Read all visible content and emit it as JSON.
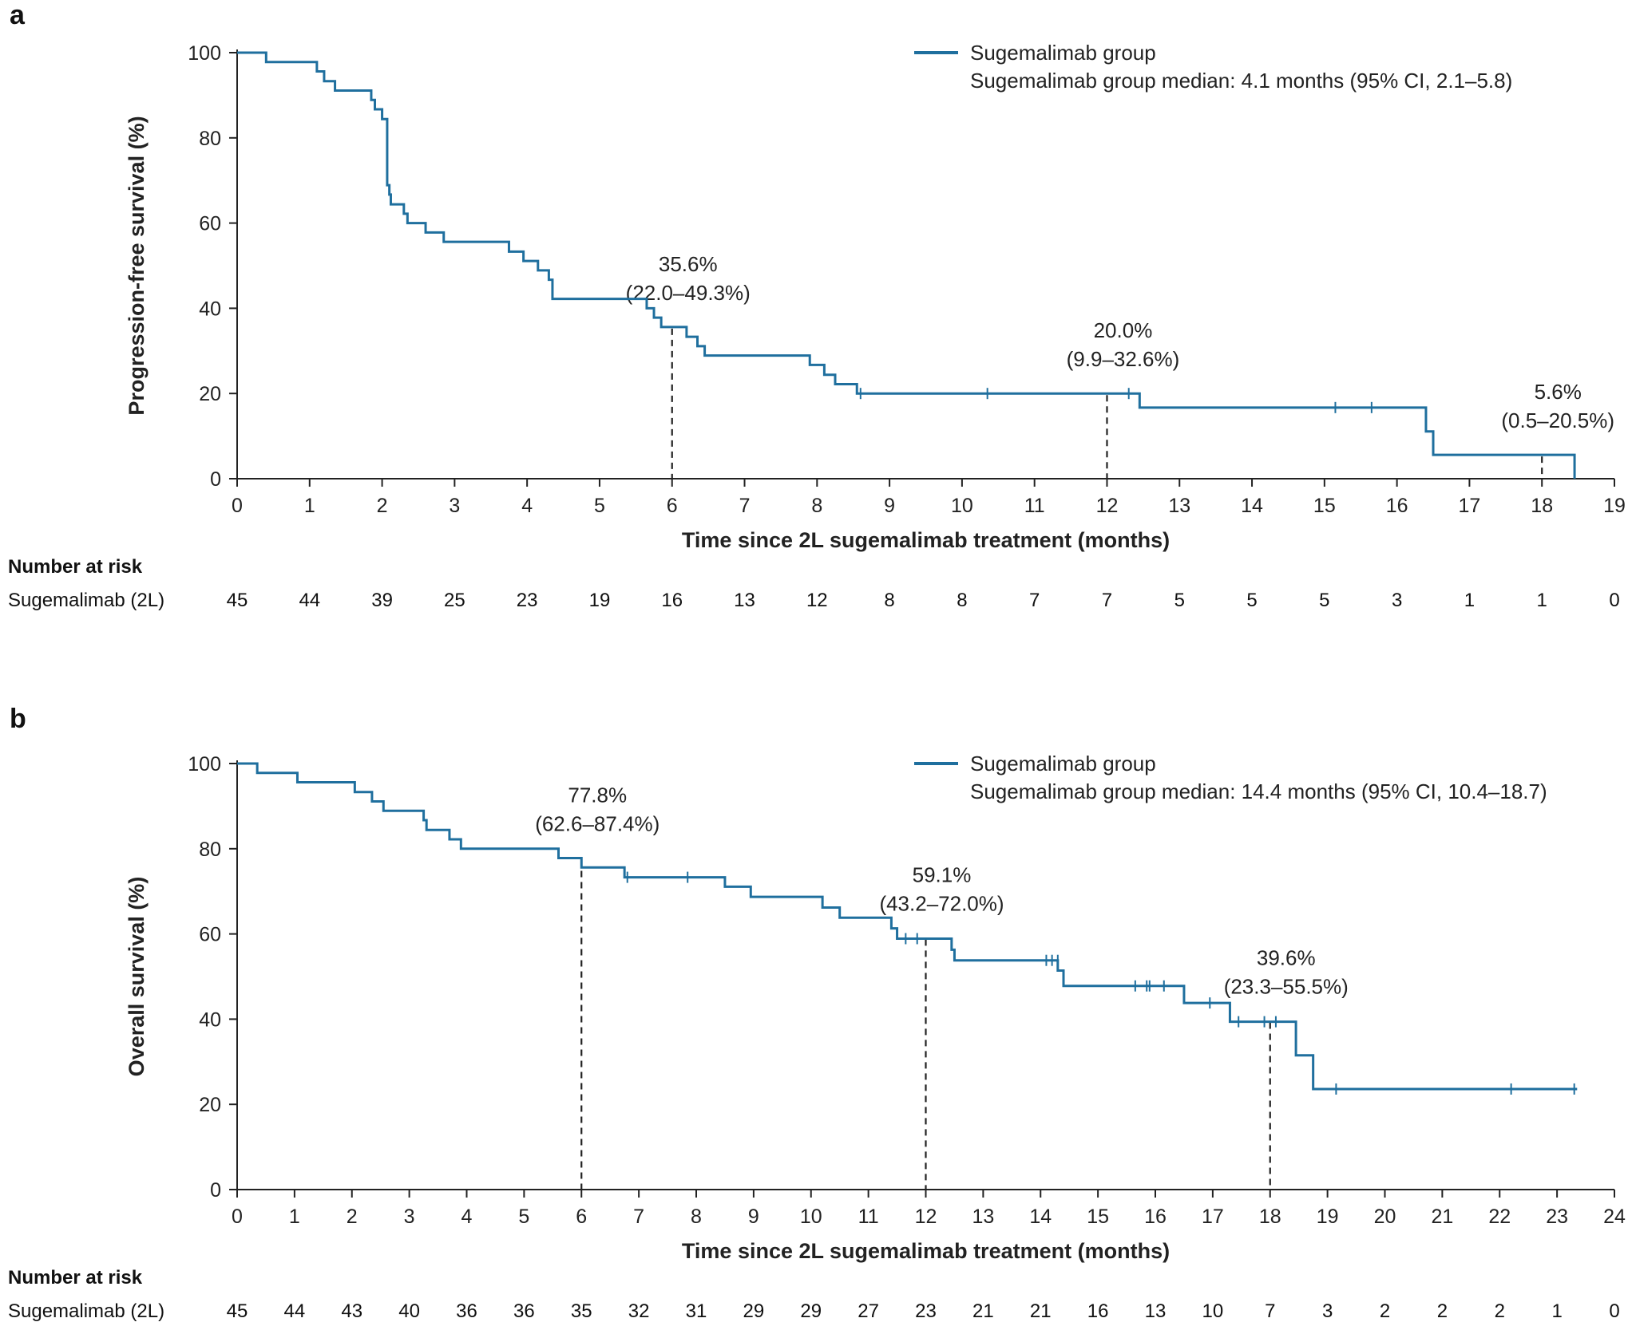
{
  "chart_data": [
    {
      "panel_label": "a",
      "type": "line",
      "subtype": "kaplan-meier",
      "xlabel": "Time since 2L sugemalimab treatment (months)",
      "ylabel": "Progression-free survival (%)",
      "xlim": [
        0,
        19
      ],
      "ylim": [
        0,
        100
      ],
      "xticks": [
        0,
        1,
        2,
        3,
        4,
        5,
        6,
        7,
        8,
        9,
        10,
        11,
        12,
        13,
        14,
        15,
        16,
        17,
        18,
        19
      ],
      "yticks": [
        0,
        20,
        40,
        60,
        80,
        100
      ],
      "color": "#1f6f9e",
      "legend": {
        "series_label": "Sugemalimab group",
        "median_text": "Sugemalimab group median: 4.1 months (95% CI, 2.1–5.8)"
      },
      "series": [
        {
          "name": "Sugemalimab group",
          "steps": [
            [
              0,
              100
            ],
            [
              0.4,
              97.8
            ],
            [
              1.1,
              95.6
            ],
            [
              1.2,
              93.3
            ],
            [
              1.35,
              91.1
            ],
            [
              1.85,
              88.9
            ],
            [
              1.9,
              86.7
            ],
            [
              2.0,
              84.4
            ],
            [
              2.07,
              68.9
            ],
            [
              2.1,
              66.7
            ],
            [
              2.12,
              64.4
            ],
            [
              2.3,
              62.2
            ],
            [
              2.35,
              60.0
            ],
            [
              2.6,
              57.8
            ],
            [
              2.85,
              55.6
            ],
            [
              3.75,
              53.3
            ],
            [
              3.95,
              51.1
            ],
            [
              4.15,
              48.9
            ],
            [
              4.3,
              46.7
            ],
            [
              4.35,
              42.2
            ],
            [
              5.65,
              40.0
            ],
            [
              5.75,
              37.8
            ],
            [
              5.85,
              35.6
            ],
            [
              6.2,
              33.3
            ],
            [
              6.35,
              31.1
            ],
            [
              6.45,
              28.9
            ],
            [
              7.9,
              26.7
            ],
            [
              8.1,
              24.4
            ],
            [
              8.25,
              22.2
            ],
            [
              8.55,
              20.0
            ],
            [
              12.45,
              16.7
            ],
            [
              16.4,
              11.1
            ],
            [
              16.5,
              5.6
            ],
            [
              18.45,
              0
            ]
          ],
          "censored": [
            [
              8.6,
              20.0
            ],
            [
              10.35,
              20.0
            ],
            [
              12.3,
              20.0
            ],
            [
              15.15,
              16.7
            ],
            [
              15.65,
              16.7
            ]
          ]
        }
      ],
      "annotations": [
        {
          "x": 6,
          "y": 35.6,
          "label": "35.6%",
          "ci": "(22.0–49.3%)"
        },
        {
          "x": 12,
          "y": 20.0,
          "label": "20.0%",
          "ci": "(9.9–32.6%)"
        },
        {
          "x": 18,
          "y": 5.6,
          "label": "5.6%",
          "ci": "(0.5–20.5%)"
        }
      ],
      "risk_table": {
        "title": "Number at risk",
        "row_label": "Sugemalimab (2L)",
        "values": [
          45,
          44,
          39,
          25,
          23,
          19,
          16,
          13,
          12,
          8,
          8,
          7,
          7,
          5,
          5,
          5,
          3,
          1,
          1,
          0
        ]
      }
    },
    {
      "panel_label": "b",
      "type": "line",
      "subtype": "kaplan-meier",
      "xlabel": "Time since 2L sugemalimab treatment (months)",
      "ylabel": "Overall survival (%)",
      "xlim": [
        0,
        24
      ],
      "ylim": [
        0,
        100
      ],
      "xticks": [
        0,
        1,
        2,
        3,
        4,
        5,
        6,
        7,
        8,
        9,
        10,
        11,
        12,
        13,
        14,
        15,
        16,
        17,
        18,
        19,
        20,
        21,
        22,
        23,
        24
      ],
      "yticks": [
        0,
        20,
        40,
        60,
        80,
        100
      ],
      "color": "#1f6f9e",
      "legend": {
        "series_label": "Sugemalimab group",
        "median_text": "Sugemalimab group median: 14.4 months (95% CI, 10.4–18.7)"
      },
      "series": [
        {
          "name": "Sugemalimab group",
          "steps": [
            [
              0,
              100
            ],
            [
              0.35,
              97.8
            ],
            [
              1.05,
              95.6
            ],
            [
              2.05,
              93.3
            ],
            [
              2.35,
              91.1
            ],
            [
              2.55,
              88.9
            ],
            [
              3.25,
              86.7
            ],
            [
              3.3,
              84.4
            ],
            [
              3.7,
              82.2
            ],
            [
              3.9,
              80.0
            ],
            [
              5.6,
              77.8
            ],
            [
              6.0,
              75.6
            ],
            [
              6.75,
              73.3
            ],
            [
              8.5,
              71.1
            ],
            [
              8.95,
              68.7
            ],
            [
              10.2,
              66.2
            ],
            [
              10.5,
              63.8
            ],
            [
              11.4,
              61.3
            ],
            [
              11.5,
              58.9
            ],
            [
              12.45,
              56.3
            ],
            [
              12.5,
              53.8
            ],
            [
              14.3,
              51.4
            ],
            [
              14.4,
              47.8
            ],
            [
              16.5,
              43.8
            ],
            [
              17.3,
              39.4
            ],
            [
              18.45,
              31.5
            ],
            [
              18.75,
              23.6
            ]
          ],
          "censored": [
            [
              6.8,
              73.3
            ],
            [
              7.85,
              73.3
            ],
            [
              11.65,
              58.9
            ],
            [
              11.85,
              58.9
            ],
            [
              14.1,
              53.8
            ],
            [
              14.2,
              53.8
            ],
            [
              14.3,
              53.8
            ],
            [
              15.65,
              47.8
            ],
            [
              15.85,
              47.8
            ],
            [
              15.9,
              47.8
            ],
            [
              16.15,
              47.8
            ],
            [
              16.95,
              43.8
            ],
            [
              17.45,
              39.4
            ],
            [
              17.9,
              39.4
            ],
            [
              18.1,
              39.4
            ],
            [
              19.15,
              23.6
            ],
            [
              22.2,
              23.6
            ],
            [
              23.3,
              23.6
            ]
          ]
        }
      ],
      "annotations": [
        {
          "x": 6,
          "y": 77.8,
          "label": "77.8%",
          "ci": "(62.6–87.4%)"
        },
        {
          "x": 12,
          "y": 59.1,
          "label": "59.1%",
          "ci": "(43.2–72.0%)"
        },
        {
          "x": 18,
          "y": 39.6,
          "label": "39.6%",
          "ci": "(23.3–55.5%)"
        }
      ],
      "risk_table": {
        "title": "Number at risk",
        "row_label": "Sugemalimab (2L)",
        "values": [
          45,
          44,
          43,
          40,
          36,
          36,
          35,
          32,
          31,
          29,
          29,
          27,
          23,
          21,
          21,
          16,
          13,
          10,
          7,
          3,
          2,
          2,
          2,
          1,
          0
        ]
      }
    }
  ]
}
